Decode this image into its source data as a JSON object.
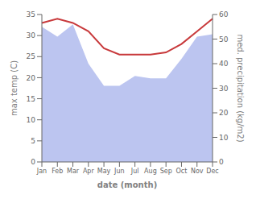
{
  "chart_data": {
    "type": "line",
    "categories": [
      "Jan",
      "Feb",
      "Mar",
      "Apr",
      "May",
      "Jun",
      "Jul",
      "Aug",
      "Sep",
      "Oct",
      "Nov",
      "Dec"
    ],
    "series": [
      {
        "type": "area",
        "axis": "y2",
        "color": "#bcc5f0",
        "values": [
          55,
          51,
          56,
          40,
          31,
          31,
          35,
          34,
          34,
          42,
          51,
          52
        ]
      },
      {
        "type": "line",
        "color": "#c8393b",
        "values": [
          33,
          34,
          33,
          31,
          27,
          25.5,
          25.5,
          25.5,
          26,
          28,
          31,
          34
        ]
      }
    ],
    "xlabel": "date (month)",
    "ylabel": "max temp (C)",
    "y2label": "med. precipitation (kg/m2)",
    "ylim": [
      0,
      35
    ],
    "yticks": [
      0,
      5,
      10,
      15,
      20,
      25,
      30,
      35
    ],
    "y2lim": [
      0,
      60
    ],
    "y2ticks": [
      0,
      10,
      20,
      30,
      40,
      50,
      60
    ],
    "grid": false
  }
}
